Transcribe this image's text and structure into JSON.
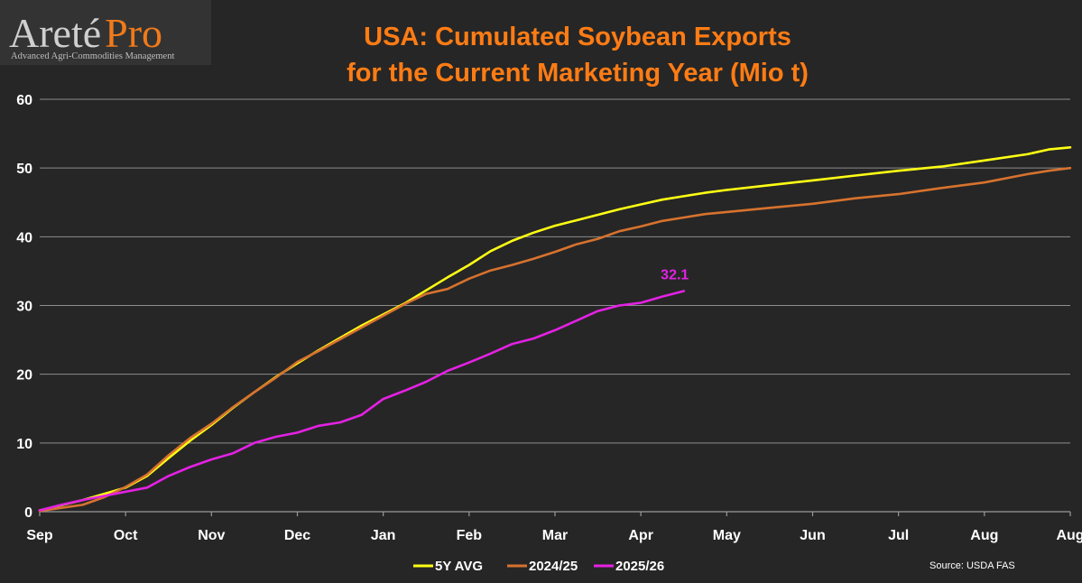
{
  "logo": {
    "brand_main": "Areté",
    "brand_accent": "Pro",
    "tagline": "Advanced Agri-Commodities Management"
  },
  "chart_data": {
    "type": "line",
    "title_lines": [
      "USA: Cumulated Soybean Exports",
      "for the Current Marketing Year (Mio t)"
    ],
    "xlabel": "",
    "ylabel": "",
    "ylim": [
      0,
      60
    ],
    "yticks": [
      0,
      10,
      20,
      30,
      40,
      50,
      60
    ],
    "xlim": [
      0,
      12
    ],
    "x_ticks": [
      {
        "x": 0,
        "label": "Sep"
      },
      {
        "x": 1,
        "label": "Oct"
      },
      {
        "x": 2,
        "label": "Nov"
      },
      {
        "x": 3,
        "label": "Dec"
      },
      {
        "x": 4,
        "label": "Jan"
      },
      {
        "x": 5,
        "label": "Feb"
      },
      {
        "x": 6,
        "label": "Mar"
      },
      {
        "x": 7,
        "label": "Apr"
      },
      {
        "x": 8,
        "label": "May"
      },
      {
        "x": 9,
        "label": "Jun"
      },
      {
        "x": 10,
        "label": "Jul"
      },
      {
        "x": 11,
        "label": "Aug"
      },
      {
        "x": 12,
        "label": "Aug"
      }
    ],
    "grid": "horizontal",
    "legend_position": "bottom-center",
    "series": [
      {
        "name": "5Y AVG",
        "color": "#ffff14",
        "x": [
          0,
          0.5,
          0.75,
          1,
          1.25,
          1.5,
          1.75,
          2,
          2.25,
          2.5,
          2.75,
          3,
          3.25,
          3.5,
          3.75,
          4,
          4.25,
          4.5,
          4.75,
          5,
          5.25,
          5.5,
          5.75,
          6,
          6.25,
          6.5,
          6.75,
          7,
          7.25,
          7.5,
          7.75,
          8,
          8.5,
          9,
          9.5,
          10,
          10.5,
          11,
          11.5,
          11.75,
          12
        ],
        "values": [
          0.2,
          1.7,
          2.6,
          3.5,
          5.2,
          7.8,
          10.3,
          12.6,
          15.1,
          17.4,
          19.6,
          21.6,
          23.5,
          25.3,
          27.1,
          28.7,
          30.3,
          32.2,
          34.1,
          35.9,
          37.9,
          39.4,
          40.6,
          41.6,
          42.4,
          43.2,
          44.0,
          44.7,
          45.4,
          45.9,
          46.4,
          46.8,
          47.5,
          48.2,
          48.9,
          49.6,
          50.2,
          51.1,
          52.0,
          52.7,
          53.0
        ]
      },
      {
        "name": "2024/25",
        "color": "#d7722e",
        "x": [
          0,
          0.5,
          0.75,
          1,
          1.25,
          1.5,
          1.75,
          2,
          2.25,
          2.5,
          2.75,
          3,
          3.25,
          3.5,
          3.75,
          4,
          4.25,
          4.5,
          4.75,
          5,
          5.25,
          5.5,
          5.75,
          6,
          6.25,
          6.5,
          6.75,
          7,
          7.25,
          7.5,
          7.75,
          8,
          8.5,
          9,
          9.5,
          10,
          10.5,
          11,
          11.5,
          11.75,
          12
        ],
        "values": [
          0.1,
          1.0,
          2.1,
          3.6,
          5.4,
          8.2,
          10.7,
          12.8,
          15.2,
          17.4,
          19.5,
          21.8,
          23.4,
          25.1,
          26.8,
          28.5,
          30.2,
          31.7,
          32.4,
          33.9,
          35.1,
          35.9,
          36.8,
          37.8,
          38.9,
          39.7,
          40.8,
          41.5,
          42.3,
          42.8,
          43.3,
          43.6,
          44.2,
          44.8,
          45.6,
          46.2,
          47.1,
          47.9,
          49.1,
          49.6,
          50.0
        ]
      },
      {
        "name": "2025/26",
        "color": "#e421e4",
        "x": [
          0,
          0.25,
          0.5,
          0.75,
          1,
          1.25,
          1.5,
          1.75,
          2,
          2.25,
          2.5,
          2.75,
          3,
          3.25,
          3.5,
          3.75,
          4,
          4.25,
          4.5,
          4.75,
          5,
          5.25,
          5.5,
          5.75,
          6,
          6.25,
          6.5,
          6.75,
          7,
          7.25,
          7.5
        ],
        "values": [
          0.2,
          1.0,
          1.7,
          2.3,
          2.9,
          3.5,
          5.2,
          6.5,
          7.6,
          8.5,
          10.0,
          10.9,
          11.5,
          12.5,
          13.0,
          14.1,
          16.4,
          17.6,
          18.9,
          20.5,
          21.7,
          23.0,
          24.4,
          25.2,
          26.4,
          27.8,
          29.2,
          30.0,
          30.4,
          31.3,
          32.1
        ]
      }
    ],
    "annotations": [
      {
        "series": "2025/26",
        "x": 7.5,
        "y": 32.1,
        "text": "32.1"
      }
    ],
    "source": "Source:  USDA FAS"
  }
}
